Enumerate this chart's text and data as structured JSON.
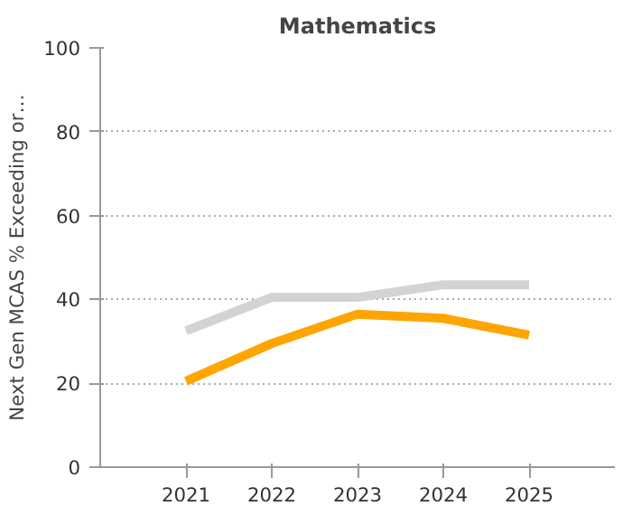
{
  "chart_data": {
    "type": "line",
    "title": "Mathematics",
    "ylabel": "Next Gen MCAS % Exceeding or…",
    "x": [
      2021,
      2022,
      2023,
      2024,
      2025
    ],
    "xlim": [
      2020,
      2026
    ],
    "xticks": [
      2021,
      2022,
      2023,
      2024,
      2025
    ],
    "ylim": [
      0,
      100
    ],
    "yticks": [
      0,
      20,
      40,
      60,
      80,
      100
    ],
    "grid": "y",
    "line_style": "solid",
    "series": [
      {
        "color": "#d3d3d3",
        "values": [
          32.5,
          40.5,
          40.5,
          43.5,
          43.5
        ]
      },
      {
        "color": "#ffa500",
        "values": [
          20.5,
          29.5,
          36.5,
          35.5,
          31.5
        ]
      }
    ]
  }
}
